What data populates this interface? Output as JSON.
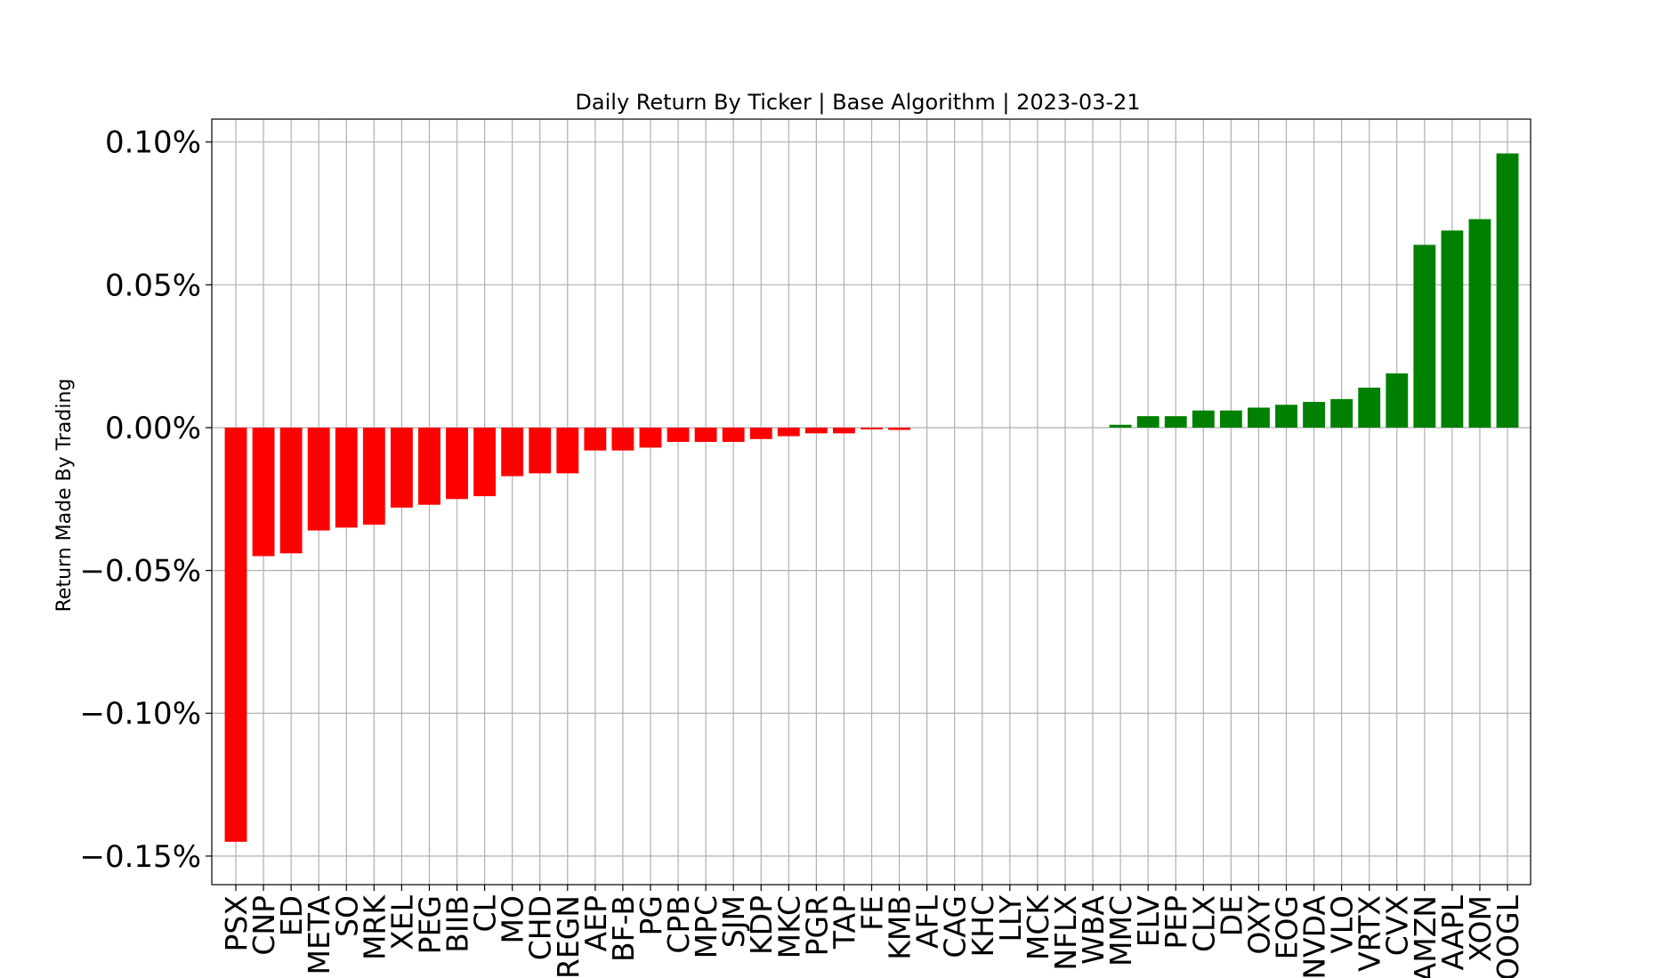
{
  "chart_data": {
    "type": "bar",
    "title": "Daily Return By Ticker | Base Algorithm | 2023-03-21",
    "xlabel": "",
    "ylabel": "Return Made By Trading",
    "ylim": [
      -0.0016,
      0.00108
    ],
    "yticks": [
      0.001,
      0.0005,
      0.0,
      -0.0005,
      -0.001,
      -0.0015
    ],
    "ytick_labels": [
      "0.10%",
      "0.05%",
      "0.00%",
      "−0.05%",
      "−0.10%",
      "−0.15%"
    ],
    "grid": true,
    "colors": {
      "negative": "#ff0000",
      "positive": "#008000"
    },
    "categories": [
      "PSX",
      "CNP",
      "ED",
      "META",
      "SO",
      "MRK",
      "XEL",
      "PEG",
      "BIIB",
      "CL",
      "MO",
      "CHD",
      "REGN",
      "AEP",
      "BF-B",
      "PG",
      "CPB",
      "MPC",
      "SJM",
      "KDP",
      "MKC",
      "PGR",
      "TAP",
      "FE",
      "KMB",
      "AFL",
      "CAG",
      "KHC",
      "LLY",
      "MCK",
      "NFLX",
      "WBA",
      "MMC",
      "ELV",
      "PEP",
      "CLX",
      "DE",
      "OXY",
      "EOG",
      "NVDA",
      "VLO",
      "VRTX",
      "CVX",
      "AMZN",
      "AAPL",
      "XOM",
      "GOOGL"
    ],
    "values": [
      -0.00145,
      -0.00045,
      -0.00044,
      -0.00036,
      -0.00035,
      -0.00034,
      -0.00028,
      -0.00027,
      -0.00025,
      -0.00024,
      -0.00017,
      -0.00016,
      -0.00016,
      -8e-05,
      -8e-05,
      -7e-05,
      -5e-05,
      -5e-05,
      -5e-05,
      -4e-05,
      -3e-05,
      -2e-05,
      -2e-05,
      -6e-06,
      -8e-06,
      0.0,
      0.0,
      0.0,
      0.0,
      0.0,
      0.0,
      0.0,
      1e-05,
      4e-05,
      4e-05,
      6e-05,
      6e-05,
      7e-05,
      8e-05,
      9e-05,
      0.0001,
      0.00014,
      0.00019,
      0.00064,
      0.00069,
      0.00073,
      0.00096
    ]
  }
}
